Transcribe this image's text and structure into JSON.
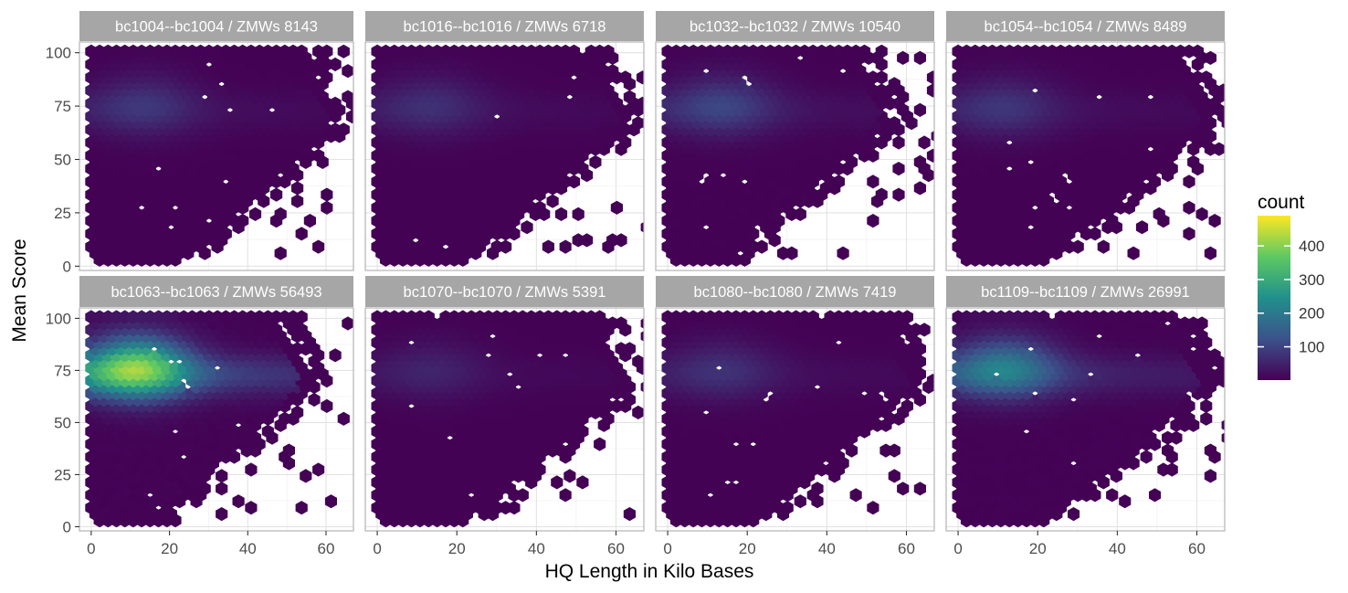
{
  "chart_data": {
    "type": "heatmap",
    "subtype": "hexbin-facets",
    "xlabel": "HQ Length in Kilo Bases",
    "ylabel": "Mean Score",
    "xlim": [
      -3,
      67
    ],
    "ylim": [
      -2,
      105
    ],
    "xticks": [
      0,
      20,
      40,
      60
    ],
    "yticks": [
      0,
      25,
      50,
      75,
      100
    ],
    "grid": true,
    "legend": {
      "title": "count",
      "position": "right",
      "range": [
        1,
        490
      ],
      "ticks": [
        100,
        200,
        300,
        400
      ],
      "colors": [
        "#440154",
        "#3B528B",
        "#21908C",
        "#5DC863",
        "#FDE725"
      ]
    },
    "panels": [
      {
        "title": "bc1004--bc1004 / ZMWs 8143",
        "zmws": 8143,
        "max_x": 67,
        "density": 0.22,
        "hotspot": [
          14,
          77
        ],
        "max_count": 95
      },
      {
        "title": "bc1016--bc1016 / ZMWs 6718",
        "zmws": 6718,
        "max_x": 67,
        "density": 0.18,
        "hotspot": [
          14,
          77
        ],
        "max_count": 80
      },
      {
        "title": "bc1032--bc1032 / ZMWs 10540",
        "zmws": 10540,
        "max_x": 60,
        "density": 0.3,
        "hotspot": [
          14,
          77
        ],
        "max_count": 120
      },
      {
        "title": "bc1054--bc1054 / ZMWs 8489",
        "zmws": 8489,
        "max_x": 67,
        "density": 0.22,
        "hotspot": [
          12,
          76
        ],
        "max_count": 90
      },
      {
        "title": "bc1063--bc1063 / ZMWs 56493",
        "zmws": 56493,
        "max_x": 60,
        "density": 1.0,
        "hotspot": [
          12,
          78
        ],
        "max_count": 490
      },
      {
        "title": "bc1070--bc1070 / ZMWs 5391",
        "zmws": 5391,
        "max_x": 67,
        "density": 0.14,
        "hotspot": [
          14,
          77
        ],
        "max_count": 60
      },
      {
        "title": "bc1080--bc1080 / ZMWs 7419",
        "zmws": 7419,
        "max_x": 67,
        "density": 0.2,
        "hotspot": [
          14,
          77
        ],
        "max_count": 85
      },
      {
        "title": "bc1109--bc1109 / ZMWs 26991",
        "zmws": 26991,
        "max_x": 67,
        "density": 0.55,
        "hotspot": [
          12,
          78
        ],
        "max_count": 260
      }
    ]
  }
}
